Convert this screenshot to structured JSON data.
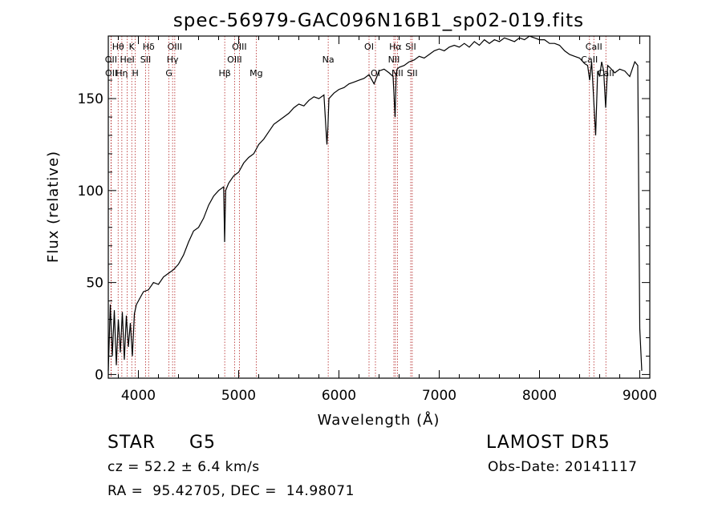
{
  "chart_data": {
    "type": "line",
    "title": "spec-56979-GAC096N16B1_sp02-019.fits",
    "xlabel": "Wavelength (Å)",
    "ylabel": "Flux (relative)",
    "xlim": [
      3700,
      9100
    ],
    "ylim": [
      -2,
      184
    ],
    "xticks": [
      4000,
      5000,
      6000,
      7000,
      8000,
      9000
    ],
    "yticks": [
      0,
      50,
      100,
      150
    ],
    "grid": false,
    "line_color": "#000000",
    "marker_color": "#b22222",
    "spectrum": {
      "x": [
        3700,
        3720,
        3740,
        3760,
        3780,
        3800,
        3820,
        3840,
        3860,
        3880,
        3900,
        3920,
        3940,
        3960,
        3980,
        4000,
        4050,
        4100,
        4150,
        4200,
        4250,
        4300,
        4350,
        4400,
        4450,
        4500,
        4550,
        4600,
        4650,
        4700,
        4750,
        4800,
        4850,
        4860,
        4870,
        4900,
        4950,
        5000,
        5050,
        5100,
        5150,
        5200,
        5250,
        5300,
        5350,
        5400,
        5450,
        5500,
        5550,
        5600,
        5650,
        5700,
        5750,
        5800,
        5850,
        5880,
        5890,
        5900,
        5950,
        6000,
        6050,
        6100,
        6150,
        6200,
        6250,
        6300,
        6350,
        6400,
        6450,
        6500,
        6540,
        6560,
        6570,
        6580,
        6600,
        6650,
        6700,
        6750,
        6800,
        6850,
        6900,
        6950,
        7000,
        7050,
        7100,
        7150,
        7200,
        7250,
        7300,
        7350,
        7400,
        7450,
        7500,
        7550,
        7600,
        7650,
        7700,
        7750,
        7800,
        7850,
        7900,
        7950,
        8000,
        8050,
        8100,
        8150,
        8200,
        8250,
        8300,
        8350,
        8400,
        8450,
        8480,
        8500,
        8520,
        8540,
        8560,
        8580,
        8600,
        8620,
        8640,
        8660,
        8680,
        8700,
        8750,
        8800,
        8850,
        8900,
        8950,
        8980,
        9000,
        9020
      ],
      "y": [
        2,
        38,
        10,
        35,
        5,
        30,
        12,
        34,
        8,
        32,
        15,
        28,
        10,
        33,
        38,
        40,
        45,
        46,
        50,
        49,
        53,
        55,
        57,
        60,
        65,
        72,
        78,
        80,
        85,
        92,
        97,
        100,
        102,
        72,
        100,
        104,
        108,
        110,
        115,
        118,
        120,
        125,
        128,
        132,
        136,
        138,
        140,
        142,
        145,
        147,
        146,
        149,
        151,
        150,
        152,
        125,
        135,
        150,
        153,
        155,
        156,
        158,
        159,
        160,
        161,
        163,
        158,
        165,
        166,
        164,
        162,
        140,
        163,
        166,
        167,
        168,
        170,
        171,
        173,
        172,
        174,
        176,
        177,
        176,
        178,
        179,
        178,
        180,
        178,
        181,
        179,
        182,
        180,
        182,
        181,
        183,
        182,
        181,
        183,
        182,
        184,
        183,
        182,
        182,
        180,
        180,
        179,
        176,
        174,
        173,
        172,
        169,
        168,
        160,
        170,
        150,
        130,
        165,
        162,
        170,
        165,
        145,
        168,
        167,
        164,
        166,
        165,
        162,
        170,
        168,
        25,
        2
      ]
    },
    "line_markers": [
      {
        "label": "Hθ",
        "x": 3798,
        "row": 1
      },
      {
        "label": "OII",
        "x": 3727,
        "row": 2
      },
      {
        "label": "OII",
        "x": 3729,
        "row": 3
      },
      {
        "label": "Hη",
        "x": 3835,
        "row": 3
      },
      {
        "label": "HeI",
        "x": 3889,
        "row": 2
      },
      {
        "label": "K",
        "x": 3934,
        "row": 1
      },
      {
        "label": "H",
        "x": 3969,
        "row": 3
      },
      {
        "label": "Hδ",
        "x": 4102,
        "row": 1
      },
      {
        "label": "SII",
        "x": 4072,
        "row": 2
      },
      {
        "label": "OIII",
        "x": 4363,
        "row": 1
      },
      {
        "label": "Hγ",
        "x": 4341,
        "row": 2
      },
      {
        "label": "G",
        "x": 4305,
        "row": 3
      },
      {
        "label": "Hβ",
        "x": 4861,
        "row": 3
      },
      {
        "label": "OIII",
        "x": 5007,
        "row": 1
      },
      {
        "label": "OIII",
        "x": 4959,
        "row": 2
      },
      {
        "label": "Mg",
        "x": 5175,
        "row": 3
      },
      {
        "label": "Na",
        "x": 5893,
        "row": 2
      },
      {
        "label": "OI",
        "x": 6300,
        "row": 1
      },
      {
        "label": "OI",
        "x": 6364,
        "row": 3
      },
      {
        "label": "Hα",
        "x": 6563,
        "row": 1
      },
      {
        "label": "NII",
        "x": 6548,
        "row": 2
      },
      {
        "label": "NII",
        "x": 6583,
        "row": 3
      },
      {
        "label": "SII",
        "x": 6716,
        "row": 1
      },
      {
        "label": "SII",
        "x": 6731,
        "row": 3
      },
      {
        "label": "CaII",
        "x": 8542,
        "row": 1
      },
      {
        "label": "CaII",
        "x": 8498,
        "row": 2
      },
      {
        "label": "CaII",
        "x": 8662,
        "row": 3
      }
    ]
  },
  "info": {
    "class_label": "STAR",
    "subclass": "G5",
    "survey": "LAMOST DR5",
    "redshift": "cz = 52.2 ± 6.4 km/s",
    "obs_date": "Obs-Date: 20141117",
    "coords": "RA =  95.42705, DEC =  14.98071"
  }
}
